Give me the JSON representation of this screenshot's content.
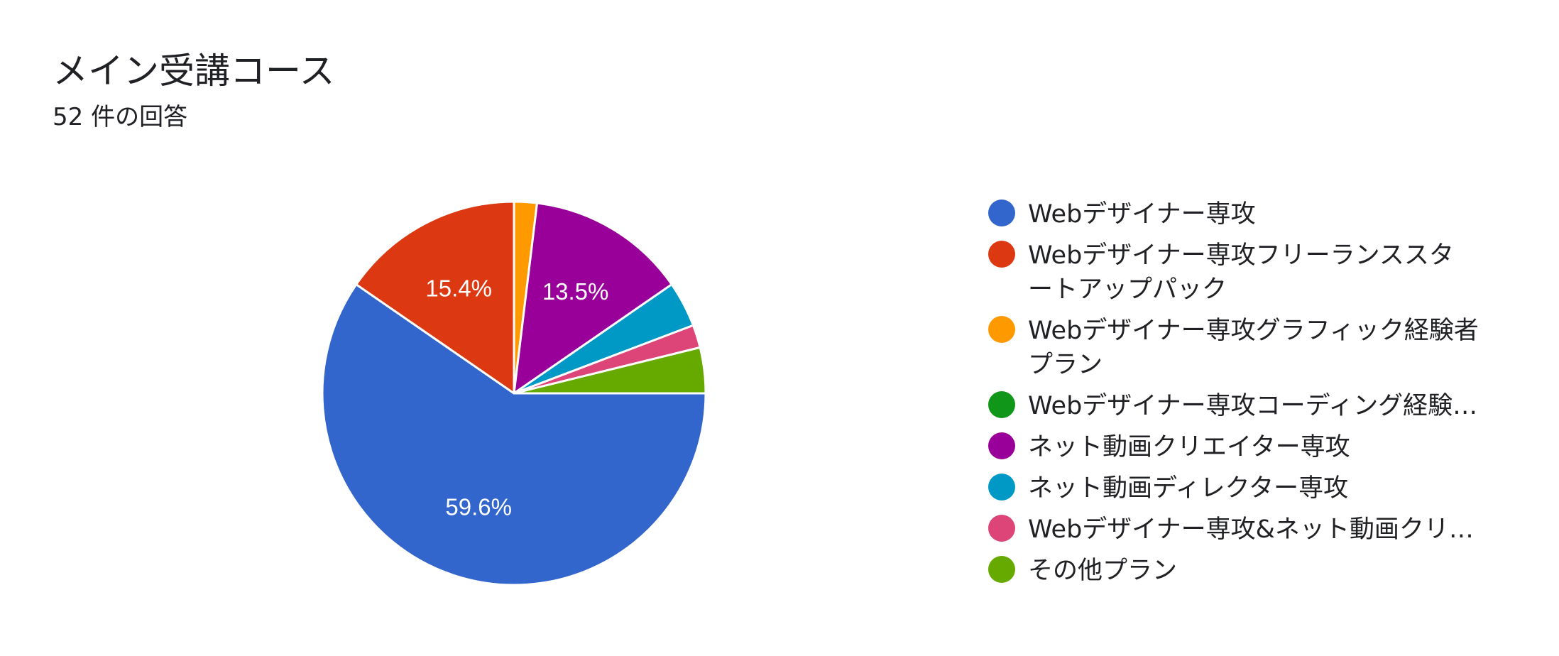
{
  "title": "メイン受講コース",
  "subtitle": "52 件の回答",
  "chart_data": {
    "type": "pie",
    "title": "メイン受講コース",
    "total_responses": 52,
    "slices": [
      {
        "label": "Webデザイナー専攻",
        "value": 31,
        "percent": 59.6,
        "display_label": "59.6%",
        "color": "#3366cc"
      },
      {
        "label": "Webデザイナー専攻フリーランススタートアップパック",
        "value": 8,
        "percent": 15.4,
        "display_label": "15.4%",
        "color": "#dc3912"
      },
      {
        "label": "Webデザイナー専攻グラフィック経験者プラン",
        "value": 1,
        "percent": 1.9,
        "display_label": "",
        "color": "#ff9900"
      },
      {
        "label": "Webデザイナー専攻コーディング経験…",
        "value": 0,
        "percent": 0,
        "display_label": "",
        "color": "#109618"
      },
      {
        "label": "ネット動画クリエイター専攻",
        "value": 7,
        "percent": 13.5,
        "display_label": "13.5%",
        "color": "#990099"
      },
      {
        "label": "ネット動画ディレクター専攻",
        "value": 2,
        "percent": 3.8,
        "display_label": "",
        "color": "#0099c6"
      },
      {
        "label": "Webデザイナー専攻&ネット動画クリ…",
        "value": 1,
        "percent": 1.9,
        "display_label": "",
        "color": "#dd4477"
      },
      {
        "label": "その他プラン",
        "value": 2,
        "percent": 3.8,
        "display_label": "",
        "color": "#66aa00"
      }
    ],
    "legend_position": "right"
  },
  "legend": {
    "items": [
      {
        "lines": [
          "Webデザイナー専攻"
        ]
      },
      {
        "lines": [
          "Webデザイナー専攻フリーランススタ",
          "ートアップパック"
        ]
      },
      {
        "lines": [
          "Webデザイナー専攻グラフィック経験者",
          "プラン"
        ]
      },
      {
        "lines": [
          "Webデザイナー専攻コーディング経験…"
        ]
      },
      {
        "lines": [
          "ネット動画クリエイター専攻"
        ]
      },
      {
        "lines": [
          "ネット動画ディレクター専攻"
        ]
      },
      {
        "lines": [
          "Webデザイナー専攻&ネット動画クリ…"
        ]
      },
      {
        "lines": [
          "その他プラン"
        ]
      }
    ]
  }
}
